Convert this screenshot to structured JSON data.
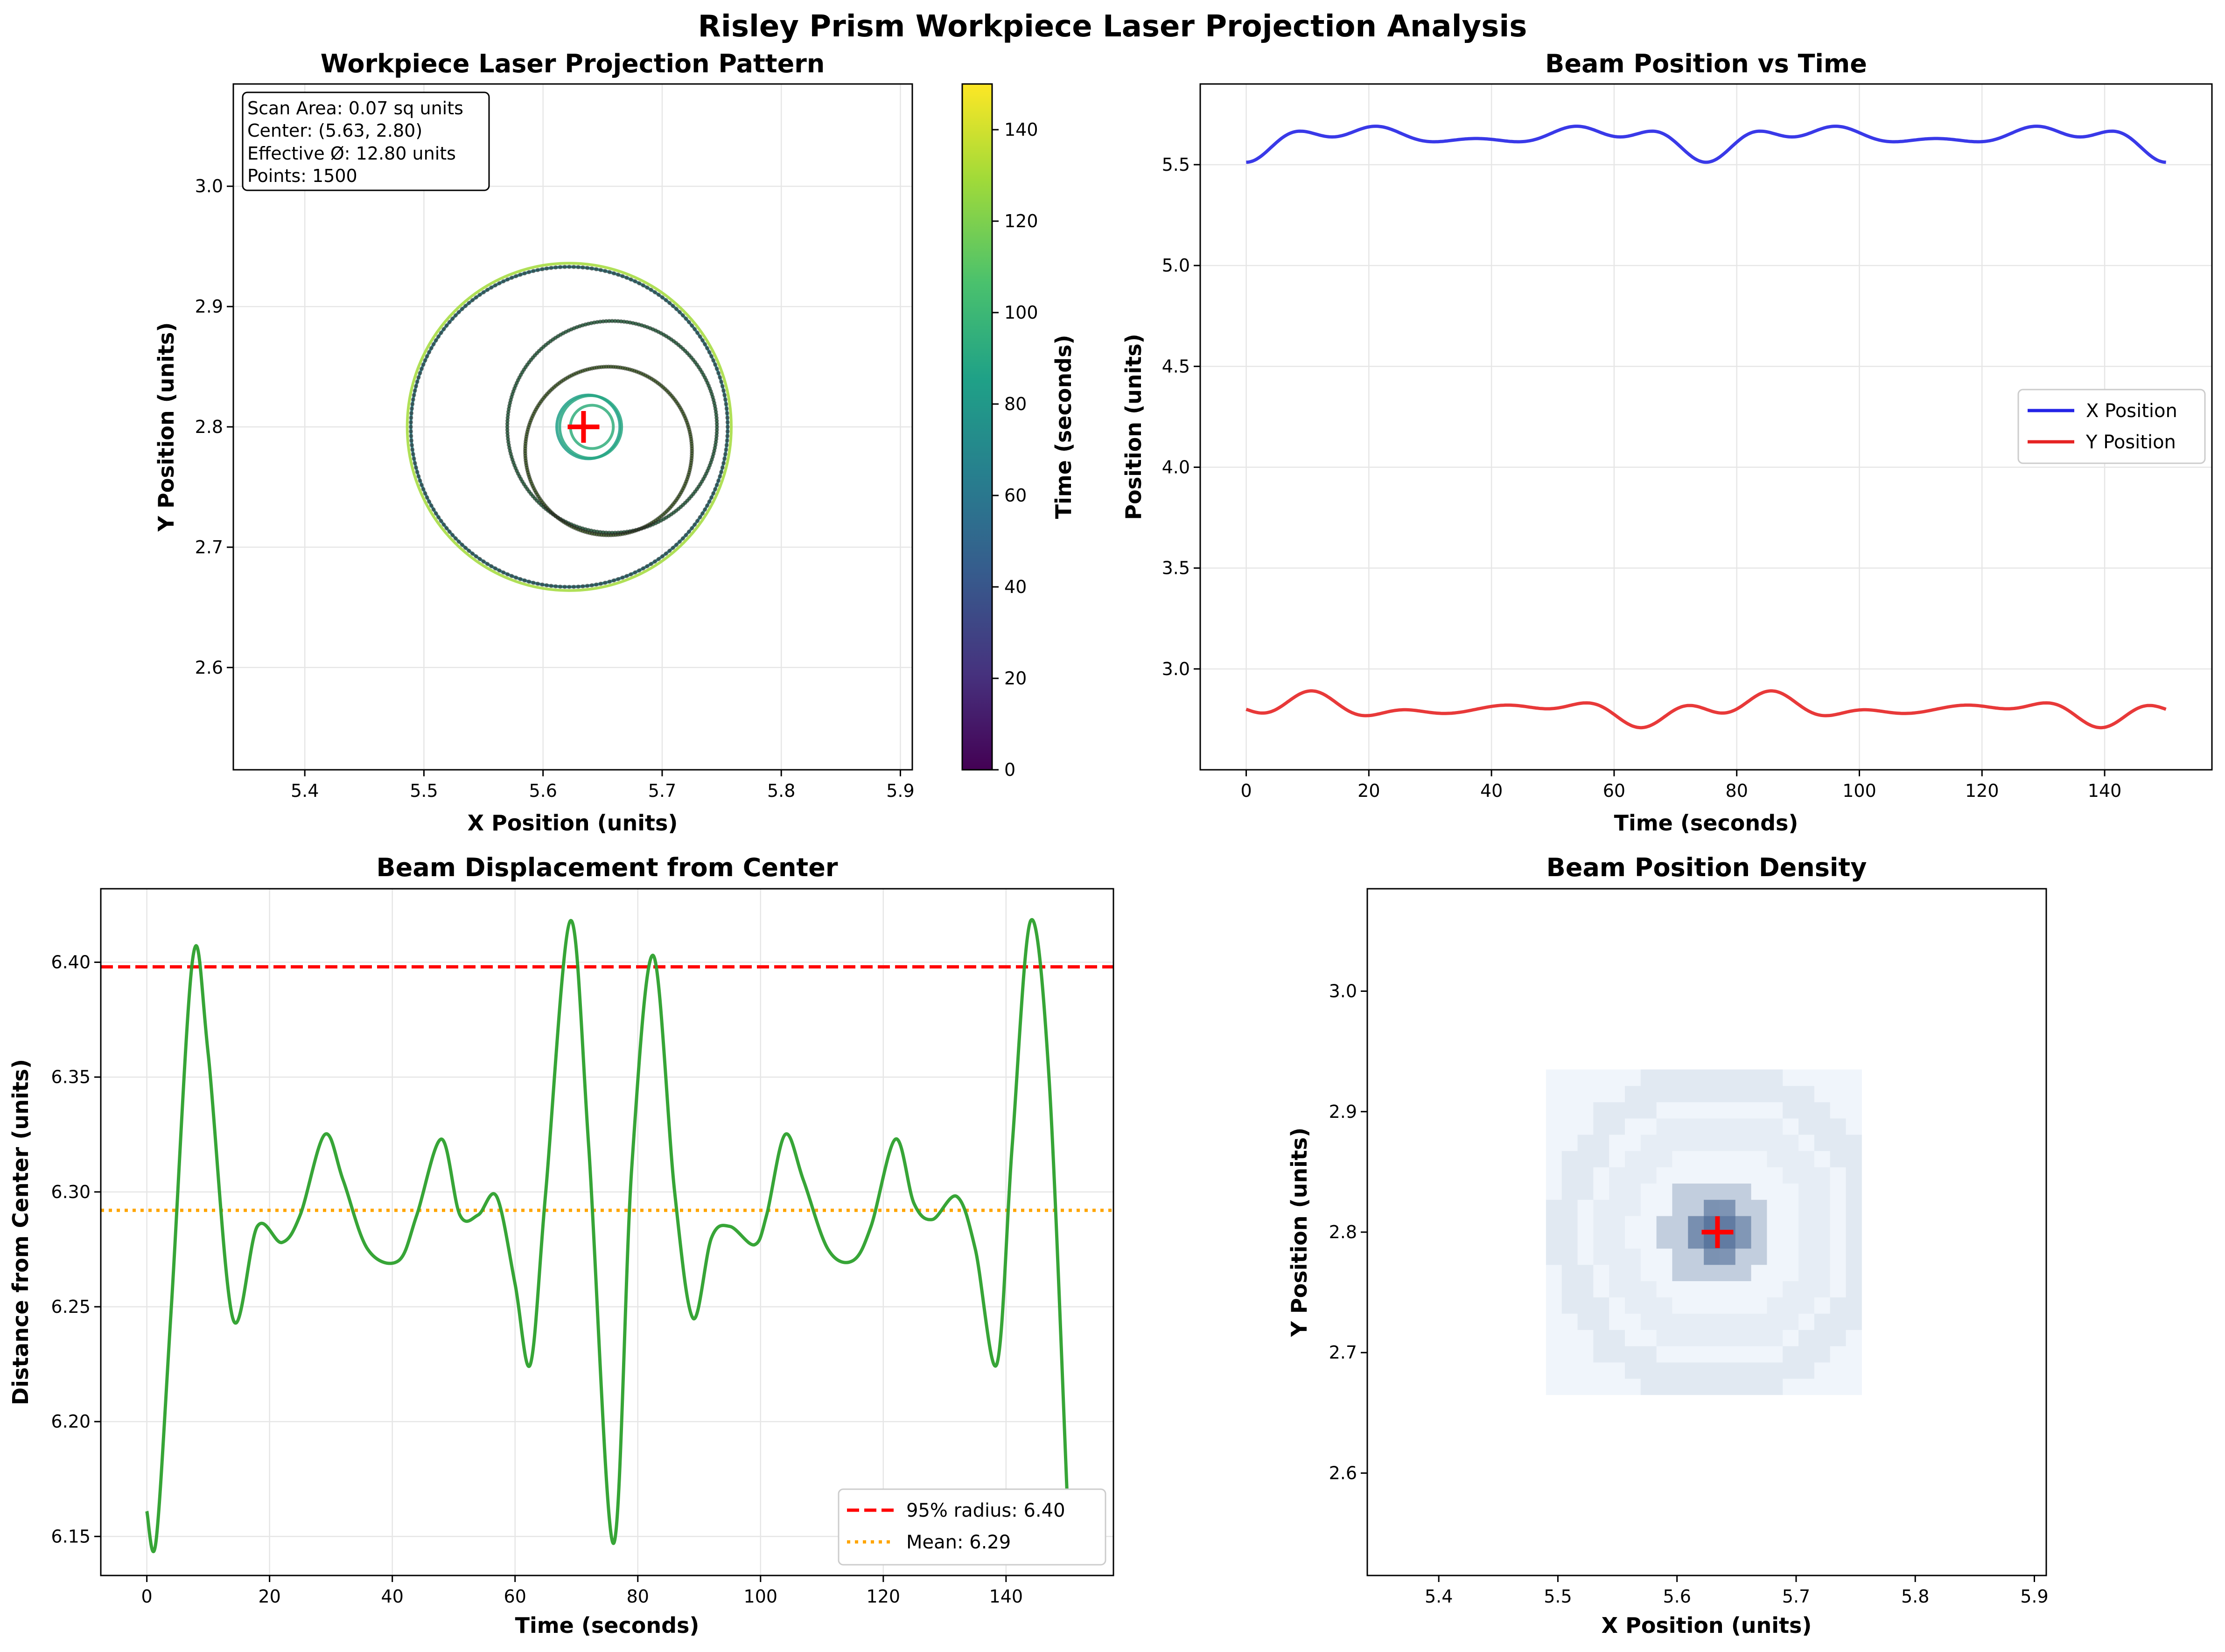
{
  "figure_title": "Risley Prism Workpiece Laser Projection Analysis",
  "colors": {
    "x_series": "#2323e6",
    "y_series": "#e62323",
    "displacement": "#2ca02c",
    "p95_line": "#ff0000",
    "mean_line": "#ffa500",
    "center_marker": "#ff0000",
    "grid": "#e6e6e6"
  },
  "chart_data": [
    {
      "type": "scatter",
      "title": "Workpiece Laser Projection Pattern",
      "xlabel": "X Position (units)",
      "ylabel": "Y Position (units)",
      "xlim": [
        5.34,
        5.91
      ],
      "ylim": [
        2.515,
        3.085
      ],
      "xticks": [
        "5.4",
        "5.5",
        "5.6",
        "5.7",
        "5.8",
        "5.9"
      ],
      "yticks": [
        "2.6",
        "2.7",
        "2.8",
        "2.9",
        "3.0"
      ],
      "grid": true,
      "colormap": "viridis",
      "colorbar": {
        "label": "Time (seconds)",
        "range": [
          0,
          150
        ],
        "ticks": [
          "0",
          "20",
          "40",
          "60",
          "80",
          "100",
          "120",
          "140"
        ]
      },
      "center": {
        "x": 5.634,
        "y": 2.8
      },
      "info_box": [
        "Scan Area: 0.07 sq units",
        "Center: (5.63, 2.80)",
        "Effective Ø: 12.80 units",
        "Points: 1500"
      ],
      "point_count": 1500,
      "time_range": [
        0,
        150
      ]
    },
    {
      "type": "line",
      "title": "Beam Position vs Time",
      "xlabel": "Time (seconds)",
      "ylabel": "Position (units)",
      "xlim": [
        -7.5,
        157.5
      ],
      "ylim": [
        2.5,
        5.9
      ],
      "xticks": [
        "0",
        "20",
        "40",
        "60",
        "80",
        "100",
        "120",
        "140"
      ],
      "yticks": [
        "3.0",
        "3.5",
        "4.0",
        "4.5",
        "5.0",
        "5.5"
      ],
      "grid": true,
      "legend_position": "center-right",
      "series": [
        {
          "name": "X Position",
          "start": 5.49,
          "mean": 5.634
        },
        {
          "name": "Y Position",
          "start": 2.8,
          "mean": 2.8
        }
      ]
    },
    {
      "type": "line",
      "title": "Beam Displacement from Center",
      "xlabel": "Time (seconds)",
      "ylabel": "Distance from Center (units)",
      "xlim": [
        -7.5,
        157.5
      ],
      "ylim": [
        6.133,
        6.432
      ],
      "xticks": [
        "0",
        "20",
        "40",
        "60",
        "80",
        "100",
        "120",
        "140"
      ],
      "yticks": [
        "6.15",
        "6.20",
        "6.25",
        "6.30",
        "6.35",
        "6.40"
      ],
      "grid": true,
      "legend_position": "lower-right",
      "reference_lines": [
        {
          "name": "95% radius: 6.40",
          "value": 6.398,
          "style": "dashed"
        },
        {
          "name": "Mean: 6.29",
          "value": 6.292,
          "style": "dotted"
        }
      ]
    },
    {
      "type": "heatmap",
      "title": "Beam Position Density",
      "xlabel": "X Position (units)",
      "ylabel": "Y Position (units)",
      "xlim": [
        5.34,
        5.91
      ],
      "ylim": [
        2.515,
        3.085
      ],
      "xticks": [
        "5.4",
        "5.5",
        "5.6",
        "5.7",
        "5.8",
        "5.9"
      ],
      "yticks": [
        "2.6",
        "2.7",
        "2.8",
        "2.9",
        "3.0"
      ],
      "bins": 20,
      "colormap": "Blues",
      "center": {
        "x": 5.634,
        "y": 2.8
      }
    }
  ]
}
